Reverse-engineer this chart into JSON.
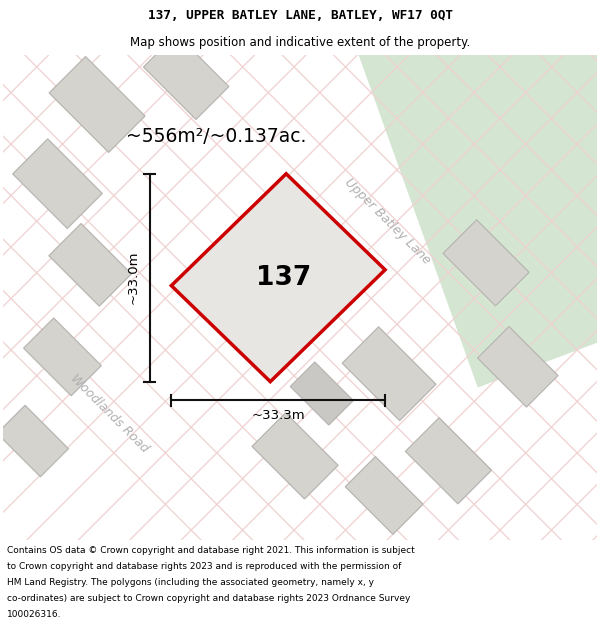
{
  "title_line1": "137, UPPER BATLEY LANE, BATLEY, WF17 0QT",
  "title_line2": "Map shows position and indicative extent of the property.",
  "area_text": "~556m²/~0.137ac.",
  "number_label": "137",
  "dim_vertical": "~33.0m",
  "dim_horizontal": "~33.3m",
  "road_label_1": "Upper Batley Lane",
  "road_label_2": "Woodlands Road",
  "footer_lines": [
    "Contains OS data © Crown copyright and database right 2021. This information is subject",
    "to Crown copyright and database rights 2023 and is reproduced with the permission of",
    "HM Land Registry. The polygons (including the associated geometry, namely x, y",
    "co-ordinates) are subject to Crown copyright and database rights 2023 Ordnance Survey",
    "100026316."
  ],
  "map_bg": "#eceae6",
  "building_fill": "#d5d3ce",
  "building_edge": "#b8b6b2",
  "property_fill": "#e8e6e2",
  "property_edge": "#cc0000",
  "green_color": "#d4e6d2",
  "road_stripe": "#f0d0d0",
  "dim_color": "#111111",
  "road_text_color": "#b0b0b0",
  "footer_bg": "#ffffff",
  "title_bg": "#ffffff"
}
